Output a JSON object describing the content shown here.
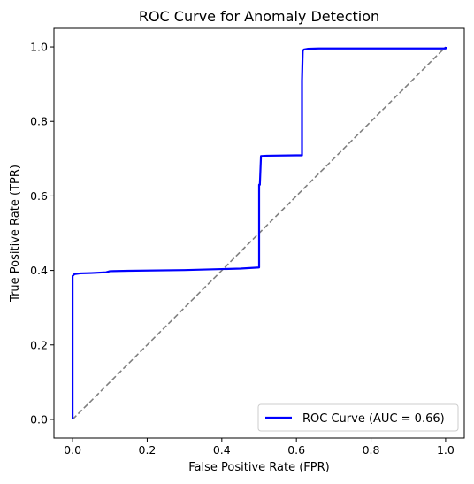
{
  "chart_data": {
    "type": "line",
    "title": "ROC Curve for Anomaly Detection",
    "xlabel": "False Positive Rate (FPR)",
    "ylabel": "True Positive Rate (TPR)",
    "xlim": [
      -0.05,
      1.05
    ],
    "ylim": [
      -0.05,
      1.05
    ],
    "xticks": [
      0.0,
      0.2,
      0.4,
      0.6,
      0.8,
      1.0
    ],
    "yticks": [
      0.0,
      0.2,
      0.4,
      0.6,
      0.8,
      1.0
    ],
    "xtick_labels": [
      "0.0",
      "0.2",
      "0.4",
      "0.6",
      "0.8",
      "1.0"
    ],
    "ytick_labels": [
      "0.0",
      "0.2",
      "0.4",
      "0.6",
      "0.8",
      "1.0"
    ],
    "grid": false,
    "legend_position": "lower-right",
    "series": [
      {
        "name": "ROC Curve (AUC = 0.66)",
        "color": "#0000ff",
        "style": "solid",
        "x": [
          0.0,
          0.0,
          0.005,
          0.02,
          0.05,
          0.09,
          0.1,
          0.15,
          0.3,
          0.45,
          0.5,
          0.5,
          0.502,
          0.505,
          0.52,
          0.6,
          0.615,
          0.615,
          0.617,
          0.62,
          0.63,
          0.66,
          1.0,
          1.0
        ],
        "y": [
          0.0,
          0.385,
          0.39,
          0.392,
          0.393,
          0.395,
          0.398,
          0.399,
          0.401,
          0.405,
          0.408,
          0.63,
          0.63,
          0.707,
          0.708,
          0.709,
          0.709,
          0.91,
          0.99,
          0.993,
          0.995,
          0.996,
          0.996,
          1.0
        ]
      },
      {
        "name": "",
        "color": "#808080",
        "style": "dashed",
        "x": [
          0.0,
          1.0
        ],
        "y": [
          0.0,
          1.0
        ]
      }
    ]
  }
}
